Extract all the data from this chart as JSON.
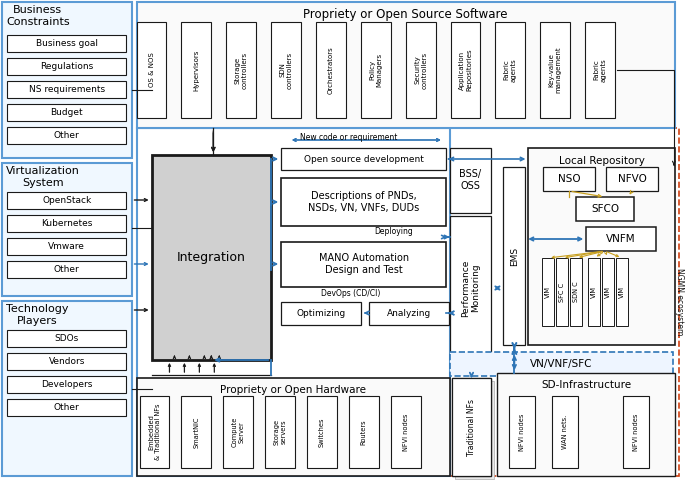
{
  "bg_color": "#ffffff",
  "light_blue": "#5b9bd5",
  "dark": "#1a1a1a",
  "orange": "#d04010",
  "blue": "#2e75b6",
  "gold": "#c8a020",
  "white": "#ffffff",
  "gray_fill": "#d0d0d0",
  "light_fill": "#f5f5f5",
  "business_constraints_title": "Business\nConstraints",
  "business_items": [
    "Business goal",
    "Regulations",
    "NS requirements",
    "Budget",
    "Other"
  ],
  "virt_title": "Virtualization\nSystem",
  "virt_items": [
    "OpenStack",
    "Kubernetes",
    "Vmware",
    "Other"
  ],
  "tech_title": "Technology\nPlayers",
  "tech_items": [
    "SDOs",
    "Vendors",
    "Developers",
    "Other"
  ],
  "sw_title": "Propriety or Open Source Software",
  "sw_items": [
    "OS & NOS",
    "Hypervisors",
    "Storage\ncontrollers",
    "SDN\ncontrollers",
    "Orchestrators",
    "Policy\nManagers",
    "Security\ncontrollers",
    "Application\nRepositories",
    "Fabric\nagents",
    "Key-value\nmanagement",
    "Fabric\nagents"
  ],
  "hw_title": "Propriety or Open Hardware",
  "hw_items": [
    "Embedded\n& Traditional NFs",
    "SmartNIC",
    "Compute\nServer",
    "Storage\nservers",
    "Switches",
    "Routers",
    "NFVI nodes"
  ],
  "integration": "Integration",
  "new_code": "New code or requirement",
  "open_src_dev": "Open source development",
  "desc_pnds": "Descriptions of PNDs,\nNSDs, VN, VNFs, DUDs",
  "mano": "MANO Automation\nDesign and Test",
  "devops": "DevOps (CD/CI)",
  "optimizing": "Optimizing",
  "analyzing": "Analyzing",
  "deploying": "Deploying",
  "bss_oss": "BSS/\nOSS",
  "perf_mon": "Performance\nMonitoring",
  "local_repo": "Local Repository",
  "ems": "EMS",
  "nso": "NSO",
  "nfvo": "NFVO",
  "sfco": "SFCO",
  "vnfm": "VNFM",
  "vim_boxes": [
    "VIM",
    "SFC C",
    "SDN C",
    "VIM",
    "VIM",
    "VIM"
  ],
  "vn_vnf_sfc": "VN/VNF/SFC",
  "sd_infra": "SD-Infrastructure",
  "sd_items": [
    "NFVI nodes",
    "WAN nets.",
    "NFVI nodes"
  ],
  "trad_nfs": "Traditional NFs",
  "ngmn": "NGMN ecosystem"
}
